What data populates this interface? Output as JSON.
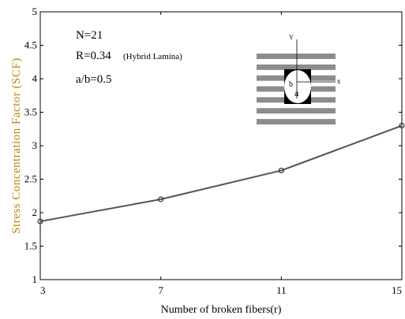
{
  "chart_data": {
    "type": "line",
    "xlabel": "Number of broken fibers(r)",
    "ylabel": "Stress Concentration Factor (SCF)",
    "x": [
      3,
      7,
      11,
      15
    ],
    "series": [
      {
        "values": [
          1.87,
          2.2,
          2.63,
          3.3
        ],
        "color": "#555555"
      }
    ],
    "xticks": [
      "3",
      "7",
      "11",
      "15"
    ],
    "yticks": [
      "1",
      "1.5",
      "2",
      "2.5",
      "3",
      "3.5",
      "4",
      "4.5",
      "5"
    ],
    "xlim": [
      3,
      15
    ],
    "ylim": [
      1,
      5
    ],
    "grid": false,
    "annotations": {
      "n": "N=21",
      "r": "R=0.34",
      "r_note": "(Hybrid Lamina)",
      "ab": "a/b=0.5"
    },
    "inset": {
      "y_label": "Y",
      "x_label": "x",
      "a_label": "a",
      "b_label": "b"
    }
  }
}
